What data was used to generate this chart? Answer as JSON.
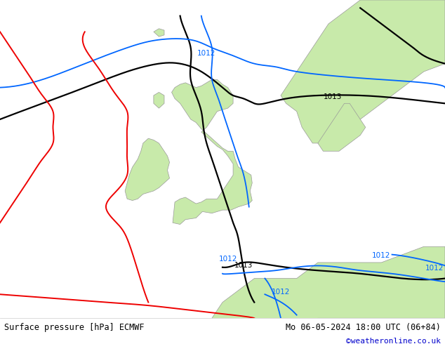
{
  "title_left": "Surface pressure [hPa] ECMWF",
  "title_right": "Mo 06-05-2024 18:00 UTC (06+84)",
  "credit": "©weatheronline.co.uk",
  "credit_color": "#0000cc",
  "bg_color": "#e0e0e8",
  "land_color": "#c8eaaa",
  "border_color": "#999999",
  "fig_width": 6.34,
  "fig_height": 4.9,
  "dpi": 100,
  "map_extent": [
    -22,
    20,
    44,
    64
  ],
  "contour_colors": {
    "black": "#000000",
    "blue": "#0066ff",
    "red": "#ee0000"
  },
  "label_fontsize": 7.5,
  "bottom_bar_height": 0.075
}
